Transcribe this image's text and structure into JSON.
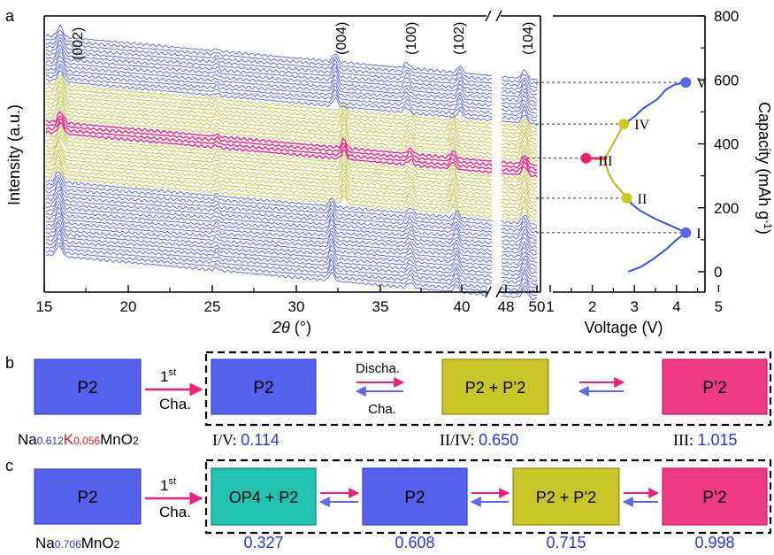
{
  "panel_a": {
    "label": "a",
    "xrd": {
      "x_axis_label_italic": "2θ",
      "x_axis_label_unit": " (°)",
      "y_axis_label": "Intensity (a.u.)",
      "x_ticks_main": [
        "15",
        "20",
        "25",
        "30",
        "35",
        "40"
      ],
      "x_ticks_break": [
        "48",
        "50"
      ],
      "peaks": [
        "(002)",
        "(004)",
        "(100)",
        "(102)",
        "(104)"
      ]
    },
    "voltage": {
      "x_axis_label": "Voltage (V)",
      "y_axis_label_main": "Capacity (mAh g",
      "y_axis_label_sup": "-1",
      "y_axis_label_close": ")",
      "x_ticks": [
        "1",
        "2",
        "3",
        "4",
        "5"
      ],
      "y_ticks": [
        "0",
        "200",
        "400",
        "600",
        "800"
      ],
      "points": [
        "I",
        "II",
        "III",
        "IV",
        "V"
      ]
    },
    "chart_data": {
      "type": "line",
      "xlabel": "Voltage (V)",
      "ylabel": "Capacity (mAh g-1)",
      "xlim": [
        1,
        5
      ],
      "ylim": [
        -50,
        800
      ],
      "series": [
        {
          "x": [
            2.85,
            3.15,
            3.45,
            3.75,
            4.0,
            4.12,
            4.2,
            4.22
          ],
          "y": [
            0,
            15,
            40,
            70,
            100,
            112,
            118,
            122
          ]
        },
        {
          "x": [
            4.22,
            3.9,
            3.5,
            3.15,
            2.95,
            2.82
          ],
          "y": [
            122,
            142,
            165,
            190,
            210,
            230
          ]
        },
        {
          "x": [
            2.82,
            2.7,
            2.5,
            2.38,
            2.3,
            1.85
          ],
          "y": [
            230,
            250,
            280,
            310,
            350,
            355
          ]
        },
        {
          "x": [
            1.85,
            2.3,
            2.45,
            2.62,
            2.75
          ],
          "y": [
            355,
            355,
            390,
            430,
            462
          ]
        },
        {
          "x": [
            2.75,
            3.0,
            3.2,
            3.55,
            3.75,
            3.95,
            4.2
          ],
          "y": [
            462,
            485,
            510,
            540,
            570,
            585,
            592
          ]
        }
      ],
      "markers": [
        {
          "label": "I",
          "x": 4.22,
          "y": 122,
          "color": "#5567e6"
        },
        {
          "label": "II",
          "x": 2.82,
          "y": 230,
          "color": "#c8cc1e"
        },
        {
          "label": "III",
          "x": 1.85,
          "y": 355,
          "color": "#e8206e"
        },
        {
          "label": "IV",
          "x": 2.75,
          "y": 462,
          "color": "#c8cc1e"
        },
        {
          "label": "V",
          "x": 4.22,
          "y": 592,
          "color": "#5567e6"
        }
      ]
    }
  },
  "panel_b": {
    "label": "b",
    "start_box": "P2",
    "arrow_sup": "st",
    "arrow_main": "1",
    "arrow_sub": "Cha.",
    "formula": {
      "na": "Na",
      "na_sub": "0.612",
      "k": "K",
      "k_sub": "0.056",
      "rest": "MnO",
      "o_sub": "2"
    },
    "boxes": [
      "P2",
      "P2 + P’2",
      "P’2"
    ],
    "discha_label": "Discha.",
    "cha_label": "Cha.",
    "values": [
      {
        "roman": "I/V",
        "num": "0.114"
      },
      {
        "roman": "II/IV",
        "num": "0.650"
      },
      {
        "roman": "III",
        "num": "1.015"
      }
    ]
  },
  "panel_c": {
    "label": "c",
    "start_box": "P2",
    "arrow_sup": "st",
    "arrow_main": "1",
    "arrow_sub": "Cha.",
    "formula": {
      "na": "Na",
      "na_sub": "0.706",
      "rest": "MnO",
      "o_sub": "2"
    },
    "boxes": [
      "OP4 + P2",
      "P2",
      "P2 + P’2",
      "P’2"
    ],
    "values": [
      "0.327",
      "0.608",
      "0.715",
      "0.998"
    ]
  },
  "colors": {
    "blue_box": "#5561ec",
    "yellow_box": "#c8c528",
    "pink_box": "#ef3a86",
    "teal_box": "#22c2b0",
    "xrd_blue": "#3b4df0",
    "xrd_yellow": "#b9b81a",
    "xrd_pink": "#f0207a",
    "value_blue": "#2a35d8",
    "red": "#e81414"
  }
}
